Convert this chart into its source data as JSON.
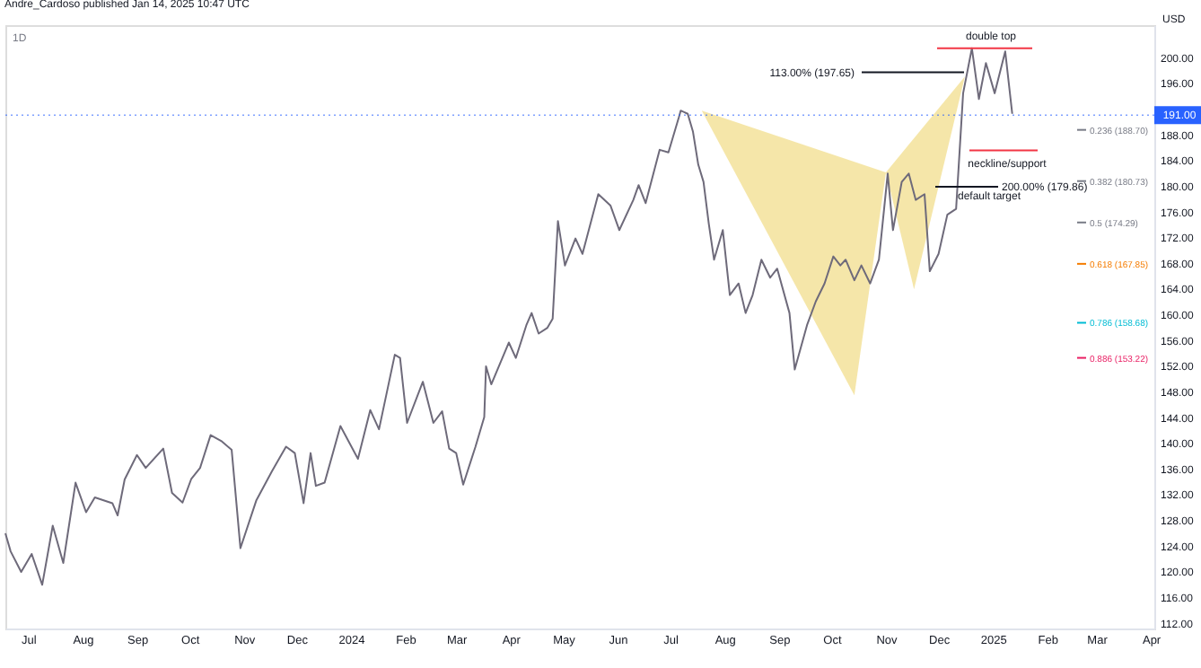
{
  "chart_data": {
    "type": "line",
    "title": "Andre_Cardoso published Jan 14, 2025 10:47 UTC",
    "subtitle": "1D",
    "ylabel": "USD",
    "x": [
      "2023-06-18",
      "2023-06-21",
      "2023-06-27",
      "2023-07-03",
      "2023-07-09",
      "2023-07-15",
      "2023-07-21",
      "2023-07-28",
      "2023-08-03",
      "2023-08-08",
      "2023-08-18",
      "2023-08-21",
      "2023-08-25",
      "2023-09-01",
      "2023-09-06",
      "2023-09-16",
      "2023-09-21",
      "2023-09-27",
      "2023-10-02",
      "2023-10-07",
      "2023-10-13",
      "2023-10-19",
      "2023-10-25",
      "2023-10-30",
      "2023-11-08",
      "2023-11-17",
      "2023-11-25",
      "2023-11-30",
      "2023-12-05",
      "2023-12-09",
      "2023-12-12",
      "2023-12-17",
      "2023-12-26",
      "2024-01-05",
      "2024-01-12",
      "2024-01-17",
      "2024-01-26",
      "2024-01-29",
      "2024-02-02",
      "2024-02-11",
      "2024-02-17",
      "2024-02-22",
      "2024-02-26",
      "2024-03-01",
      "2024-03-05",
      "2024-03-12",
      "2024-03-17",
      "2024-03-18",
      "2024-03-21",
      "2024-03-31",
      "2024-04-04",
      "2024-04-10",
      "2024-04-13",
      "2024-04-17",
      "2024-04-22",
      "2024-04-25",
      "2024-04-28",
      "2024-05-02",
      "2024-05-08",
      "2024-05-12",
      "2024-05-21",
      "2024-05-28",
      "2024-06-02",
      "2024-06-10",
      "2024-06-13",
      "2024-06-17",
      "2024-06-25",
      "2024-06-30",
      "2024-07-06",
      "2024-07-07",
      "2024-07-11",
      "2024-07-14",
      "2024-07-17",
      "2024-07-20",
      "2024-07-23",
      "2024-07-26",
      "2024-07-31",
      "2024-08-04",
      "2024-08-09",
      "2024-08-13",
      "2024-08-17",
      "2024-08-22",
      "2024-08-27",
      "2024-08-31",
      "2024-09-07",
      "2024-09-10",
      "2024-09-17",
      "2024-09-22",
      "2024-09-27",
      "2024-10-02",
      "2024-10-06",
      "2024-10-09",
      "2024-10-14",
      "2024-10-18",
      "2024-10-23",
      "2024-10-28",
      "2024-11-02",
      "2024-11-05",
      "2024-11-10",
      "2024-11-14",
      "2024-11-18",
      "2024-11-23",
      "2024-11-26",
      "2024-12-01",
      "2024-12-06",
      "2024-12-11",
      "2024-12-15",
      "2024-12-20",
      "2024-12-24",
      "2024-12-28",
      "2025-01-02",
      "2025-01-08",
      "2025-01-12"
    ],
    "series": [
      {
        "type": "area",
        "color": "#f3e29a",
        "x": [
          "2024-07-19",
          "2024-10-14",
          "2024-11-01",
          "2024-07-19"
        ],
        "values": [
          191.7,
          147.4,
          182.1,
          191.7
        ]
      },
      {
        "type": "area",
        "color": "#f3e29a",
        "x": [
          "2024-11-01",
          "2024-11-17",
          "2024-12-16",
          "2024-11-01"
        ],
        "values": [
          182.1,
          163.9,
          197.0,
          182.1
        ]
      },
      {
        "color": "#6e6a7a",
        "values": [
          125.9,
          123.1,
          119.9,
          122.7,
          117.9,
          127.1,
          121.3,
          133.8,
          129.2,
          131.5,
          130.6,
          128.7,
          134.3,
          138.1,
          136.1,
          139.1,
          132.2,
          130.7,
          134.4,
          136.1,
          141.2,
          140.3,
          138.9,
          123.6,
          131.0,
          135.6,
          139.4,
          138.4,
          130.6,
          138.4,
          133.3,
          133.8,
          142.6,
          137.5,
          145.1,
          142.1,
          153.7,
          153.2,
          143.1,
          149.5,
          143.1,
          144.9,
          139.1,
          138.4,
          133.5,
          139.4,
          144.0,
          151.9,
          149.1,
          155.6,
          153.2,
          158.3,
          160.2,
          157.0,
          157.9,
          159.3,
          174.5,
          167.6,
          171.8,
          169.4,
          178.7,
          176.9,
          173.1,
          177.8,
          180.1,
          177.3,
          185.6,
          185.2,
          190.7,
          191.7,
          191.2,
          188.4,
          183.3,
          180.6,
          174.1,
          168.5,
          173.1,
          163.0,
          164.8,
          160.2,
          163.0,
          168.5,
          165.7,
          167.1,
          160.2,
          151.4,
          158.3,
          162.0,
          164.8,
          169.0,
          167.6,
          168.5,
          165.3,
          167.6,
          164.8,
          168.5,
          181.9,
          173.1,
          180.6,
          181.9,
          177.8,
          178.7,
          166.7,
          169.4,
          175.5,
          176.4,
          194.4,
          201.4,
          193.5,
          199.1,
          194.4,
          200.9,
          191.2
        ]
      }
    ],
    "xlim": [
      "2023-06-18",
      "2025-04-03"
    ],
    "xticks": [
      {
        "value": "2023-07-01",
        "label": "Jul"
      },
      {
        "value": "2023-08-01",
        "label": "Aug"
      },
      {
        "value": "2023-09-01",
        "label": "Sep"
      },
      {
        "value": "2023-10-01",
        "label": "Oct"
      },
      {
        "value": "2023-11-01",
        "label": "Nov"
      },
      {
        "value": "2023-12-01",
        "label": "Dec"
      },
      {
        "value": "2024-01-01",
        "label": "2024"
      },
      {
        "value": "2024-02-01",
        "label": "Feb"
      },
      {
        "value": "2024-03-01",
        "label": "Mar"
      },
      {
        "value": "2024-04-01",
        "label": "Apr"
      },
      {
        "value": "2024-05-01",
        "label": "May"
      },
      {
        "value": "2024-06-01",
        "label": "Jun"
      },
      {
        "value": "2024-07-01",
        "label": "Jul"
      },
      {
        "value": "2024-08-01",
        "label": "Aug"
      },
      {
        "value": "2024-09-01",
        "label": "Sep"
      },
      {
        "value": "2024-10-01",
        "label": "Oct"
      },
      {
        "value": "2024-11-01",
        "label": "Nov"
      },
      {
        "value": "2024-12-01",
        "label": "Dec"
      },
      {
        "value": "2025-01-01",
        "label": "2025"
      },
      {
        "value": "2025-02-01",
        "label": "Feb"
      },
      {
        "value": "2025-03-01",
        "label": "Mar"
      },
      {
        "value": "2025-04-01",
        "label": "Apr"
      }
    ],
    "ylim": [
      111.1,
      205.0
    ],
    "yticks": [
      {
        "value": 112,
        "label": "112.00"
      },
      {
        "value": 116,
        "label": "116.00"
      },
      {
        "value": 120,
        "label": "120.00"
      },
      {
        "value": 124,
        "label": "124.00"
      },
      {
        "value": 128,
        "label": "128.00"
      },
      {
        "value": 132,
        "label": "132.00"
      },
      {
        "value": 136,
        "label": "136.00"
      },
      {
        "value": 140,
        "label": "140.00"
      },
      {
        "value": 144,
        "label": "144.00"
      },
      {
        "value": 148,
        "label": "148.00"
      },
      {
        "value": 152,
        "label": "152.00"
      },
      {
        "value": 156,
        "label": "156.00"
      },
      {
        "value": 160,
        "label": "160.00"
      },
      {
        "value": 164,
        "label": "164.00"
      },
      {
        "value": 168,
        "label": "168.00"
      },
      {
        "value": 172,
        "label": "172.00"
      },
      {
        "value": 176,
        "label": "176.00"
      },
      {
        "value": 180,
        "label": "180.00"
      },
      {
        "value": 184,
        "label": "184.00"
      },
      {
        "value": 188,
        "label": "188.00"
      },
      {
        "value": 196,
        "label": "196.00"
      },
      {
        "value": 200,
        "label": "200.00"
      }
    ],
    "ref_lines": [
      {
        "axis": "y",
        "value": 201.4,
        "label": "double top",
        "color": "#f23645"
      },
      {
        "axis": "y",
        "value": 197.65,
        "label": "113.00% (197.65)",
        "color": "#131722"
      },
      {
        "axis": "y",
        "value": 191.0,
        "label": "191.00",
        "color": "#2962ff",
        "line_style": "dotted"
      },
      {
        "axis": "y",
        "value": 185.5,
        "label": "neckline/support",
        "color": "#f23645"
      },
      {
        "axis": "y",
        "value": 188.7,
        "label": "0.236 (188.70)",
        "color": "#787b86"
      },
      {
        "axis": "y",
        "value": 179.86,
        "label": "200.00% (179.86)",
        "color": "#131722"
      },
      {
        "axis": "y",
        "value": 180.73,
        "label": "0.382 (180.73)",
        "color": "#787b86"
      },
      {
        "axis": "y",
        "value": 174.29,
        "label": "0.5 (174.29)",
        "color": "#787b86"
      },
      {
        "axis": "y",
        "value": 167.85,
        "label": "0.618 (167.85)",
        "color": "#f57c00"
      },
      {
        "axis": "y",
        "value": 158.68,
        "label": "0.786 (158.68)",
        "color": "#00bcd4"
      },
      {
        "axis": "y",
        "value": 153.22,
        "label": "0.886 (153.22)",
        "color": "#e91e63"
      }
    ],
    "annotations": [
      "default target"
    ],
    "grid": false,
    "marker": "none",
    "line_style": "solid"
  }
}
